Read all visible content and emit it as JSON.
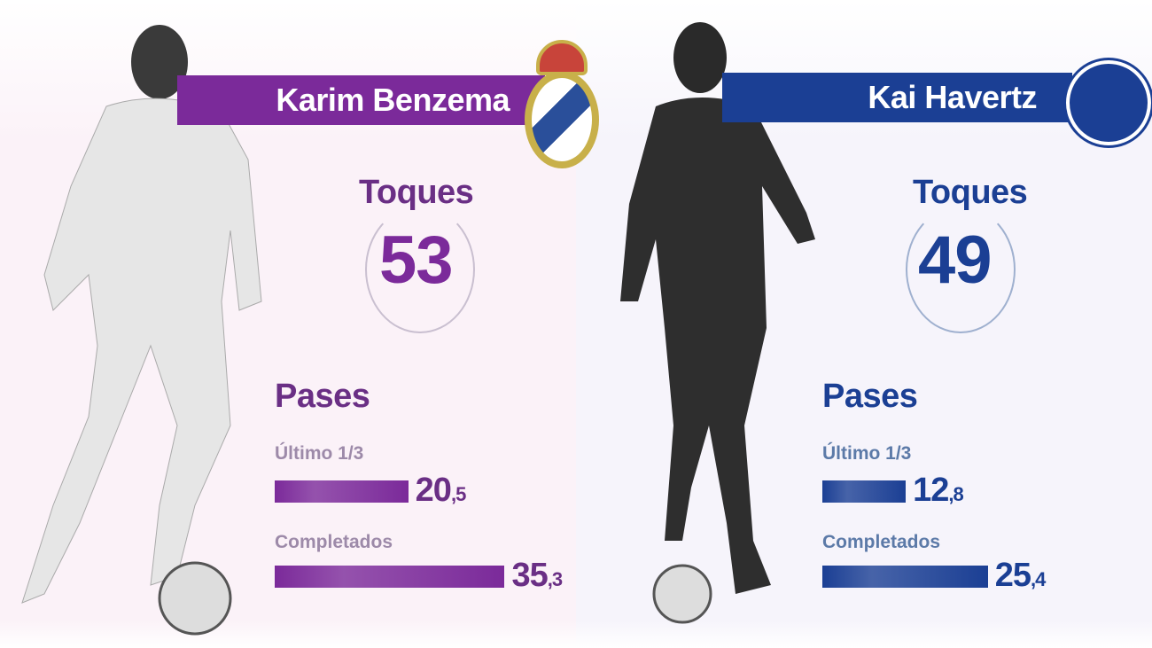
{
  "players": [
    {
      "name": "Karim Benzema",
      "club_crest": "real-madrid-crest",
      "accent": "#7b2a9a",
      "label_color": "#9d8aa9",
      "toques_label": "Toques",
      "toques": "53",
      "pases_label": "Pases",
      "stats": [
        {
          "label": "Último 1/3",
          "value": 20.5,
          "int": "20",
          "dec": ",5"
        },
        {
          "label": "Completados",
          "value": 35.3,
          "int": "35",
          "dec": ",3"
        }
      ]
    },
    {
      "name": "Kai Havertz",
      "club_crest": "chelsea-crest",
      "accent": "#1b3f94",
      "label_color": "#5c7aa8",
      "toques_label": "Toques",
      "toques": "49",
      "pases_label": "Pases",
      "stats": [
        {
          "label": "Último 1/3",
          "value": 12.8,
          "int": "12",
          "dec": ",8"
        },
        {
          "label": "Completados",
          "value": 25.4,
          "int": "25",
          "dec": ",4"
        }
      ]
    }
  ]
}
